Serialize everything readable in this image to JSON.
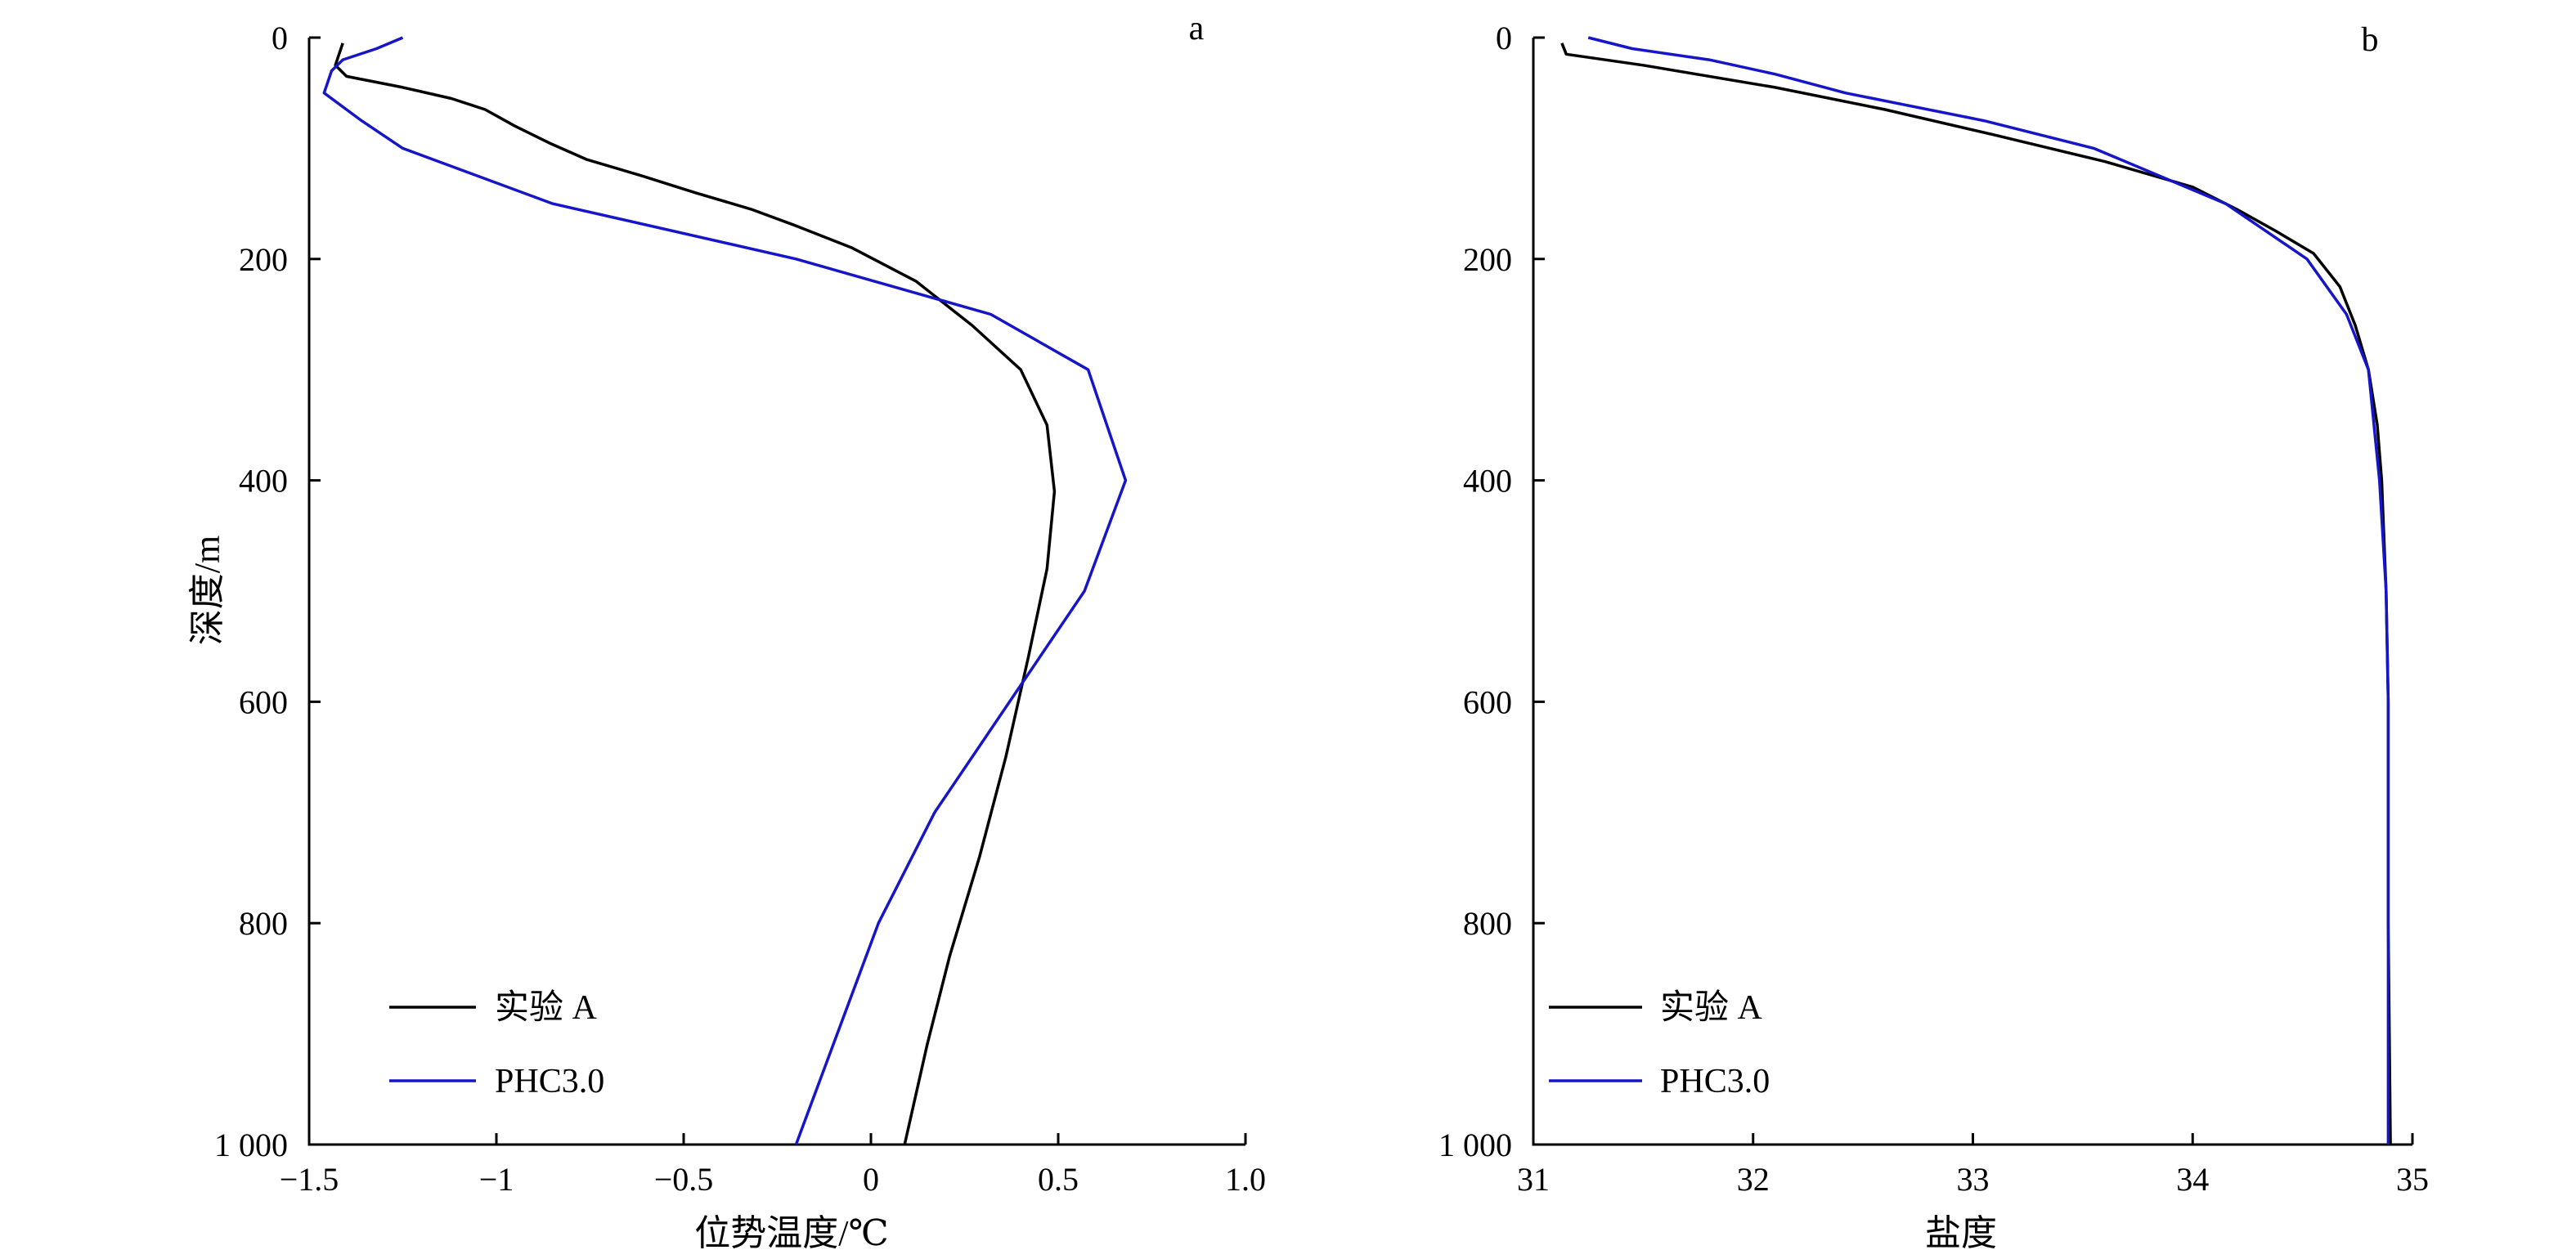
{
  "colors": {
    "experiment": "#000000",
    "phc": "#1616c8"
  },
  "chart_data": [
    {
      "type": "line",
      "panel_label": "a",
      "xlabel": "位势温度/℃",
      "ylabel": "深度/m",
      "xlim": [
        -1.5,
        1.0
      ],
      "ylim": [
        0,
        1000
      ],
      "y_inverted": true,
      "xticks": [
        -1.5,
        -1.0,
        -0.5,
        0,
        0.5,
        1.0
      ],
      "xtick_labels": [
        "−1.5",
        "−1",
        "−0.5",
        "0",
        "0.5",
        "1.0"
      ],
      "yticks": [
        0,
        200,
        400,
        600,
        800,
        1000
      ],
      "ytick_labels": [
        "0",
        "200",
        "400",
        "600",
        "800",
        "1 000"
      ],
      "legend_position": "bottom-left",
      "series": [
        {
          "name": "实验 A",
          "color": "#000000",
          "points": [
            {
              "x": -1.41,
              "y": 5
            },
            {
              "x": -1.42,
              "y": 15
            },
            {
              "x": -1.43,
              "y": 25
            },
            {
              "x": -1.4,
              "y": 35
            },
            {
              "x": -1.25,
              "y": 45
            },
            {
              "x": -1.12,
              "y": 55
            },
            {
              "x": -1.03,
              "y": 65
            },
            {
              "x": -0.95,
              "y": 80
            },
            {
              "x": -0.86,
              "y": 95
            },
            {
              "x": -0.76,
              "y": 110
            },
            {
              "x": -0.61,
              "y": 125
            },
            {
              "x": -0.47,
              "y": 140
            },
            {
              "x": -0.32,
              "y": 155
            },
            {
              "x": -0.2,
              "y": 170
            },
            {
              "x": -0.05,
              "y": 190
            },
            {
              "x": 0.12,
              "y": 220
            },
            {
              "x": 0.27,
              "y": 260
            },
            {
              "x": 0.4,
              "y": 300
            },
            {
              "x": 0.47,
              "y": 350
            },
            {
              "x": 0.49,
              "y": 410
            },
            {
              "x": 0.47,
              "y": 480
            },
            {
              "x": 0.42,
              "y": 560
            },
            {
              "x": 0.36,
              "y": 650
            },
            {
              "x": 0.29,
              "y": 740
            },
            {
              "x": 0.21,
              "y": 830
            },
            {
              "x": 0.15,
              "y": 910
            },
            {
              "x": 0.09,
              "y": 1000
            }
          ]
        },
        {
          "name": "PHC3.0",
          "color": "#1616c8",
          "points": [
            {
              "x": -1.25,
              "y": 0
            },
            {
              "x": -1.32,
              "y": 10
            },
            {
              "x": -1.41,
              "y": 20
            },
            {
              "x": -1.44,
              "y": 30
            },
            {
              "x": -1.46,
              "y": 50
            },
            {
              "x": -1.36,
              "y": 75
            },
            {
              "x": -1.25,
              "y": 100
            },
            {
              "x": -0.85,
              "y": 150
            },
            {
              "x": -0.2,
              "y": 200
            },
            {
              "x": 0.32,
              "y": 250
            },
            {
              "x": 0.58,
              "y": 300
            },
            {
              "x": 0.68,
              "y": 400
            },
            {
              "x": 0.57,
              "y": 500
            },
            {
              "x": 0.37,
              "y": 600
            },
            {
              "x": 0.17,
              "y": 700
            },
            {
              "x": 0.02,
              "y": 800
            },
            {
              "x": -0.09,
              "y": 900
            },
            {
              "x": -0.2,
              "y": 1000
            }
          ]
        }
      ]
    },
    {
      "type": "line",
      "panel_label": "b",
      "xlabel": "盐度",
      "ylabel": "",
      "xlim": [
        31,
        35
      ],
      "ylim": [
        0,
        1000
      ],
      "y_inverted": true,
      "xticks": [
        31,
        32,
        33,
        34,
        35
      ],
      "xtick_labels": [
        "31",
        "32",
        "33",
        "34",
        "35"
      ],
      "yticks": [
        0,
        200,
        400,
        600,
        800,
        1000
      ],
      "ytick_labels": [
        "0",
        "200",
        "400",
        "600",
        "800",
        "1 000"
      ],
      "legend_position": "bottom-left",
      "series": [
        {
          "name": "实验 A",
          "color": "#000000",
          "points": [
            {
              "x": 31.13,
              "y": 5
            },
            {
              "x": 31.15,
              "y": 15
            },
            {
              "x": 31.5,
              "y": 25
            },
            {
              "x": 32.1,
              "y": 45
            },
            {
              "x": 32.6,
              "y": 65
            },
            {
              "x": 33.1,
              "y": 88
            },
            {
              "x": 33.6,
              "y": 112
            },
            {
              "x": 34.0,
              "y": 135
            },
            {
              "x": 34.2,
              "y": 155
            },
            {
              "x": 34.38,
              "y": 175
            },
            {
              "x": 34.55,
              "y": 195
            },
            {
              "x": 34.67,
              "y": 225
            },
            {
              "x": 34.74,
              "y": 260
            },
            {
              "x": 34.8,
              "y": 300
            },
            {
              "x": 34.84,
              "y": 350
            },
            {
              "x": 34.86,
              "y": 400
            },
            {
              "x": 34.88,
              "y": 500
            },
            {
              "x": 34.89,
              "y": 600
            },
            {
              "x": 34.89,
              "y": 800
            },
            {
              "x": 34.9,
              "y": 1000
            }
          ]
        },
        {
          "name": "PHC3.0",
          "color": "#1616c8",
          "points": [
            {
              "x": 31.25,
              "y": 0
            },
            {
              "x": 31.45,
              "y": 10
            },
            {
              "x": 31.8,
              "y": 20
            },
            {
              "x": 32.1,
              "y": 33
            },
            {
              "x": 32.42,
              "y": 50
            },
            {
              "x": 33.05,
              "y": 75
            },
            {
              "x": 33.55,
              "y": 100
            },
            {
              "x": 34.15,
              "y": 150
            },
            {
              "x": 34.52,
              "y": 200
            },
            {
              "x": 34.7,
              "y": 250
            },
            {
              "x": 34.8,
              "y": 300
            },
            {
              "x": 34.85,
              "y": 400
            },
            {
              "x": 34.88,
              "y": 500
            },
            {
              "x": 34.89,
              "y": 600
            },
            {
              "x": 34.89,
              "y": 800
            },
            {
              "x": 34.89,
              "y": 1000
            }
          ]
        }
      ]
    }
  ]
}
